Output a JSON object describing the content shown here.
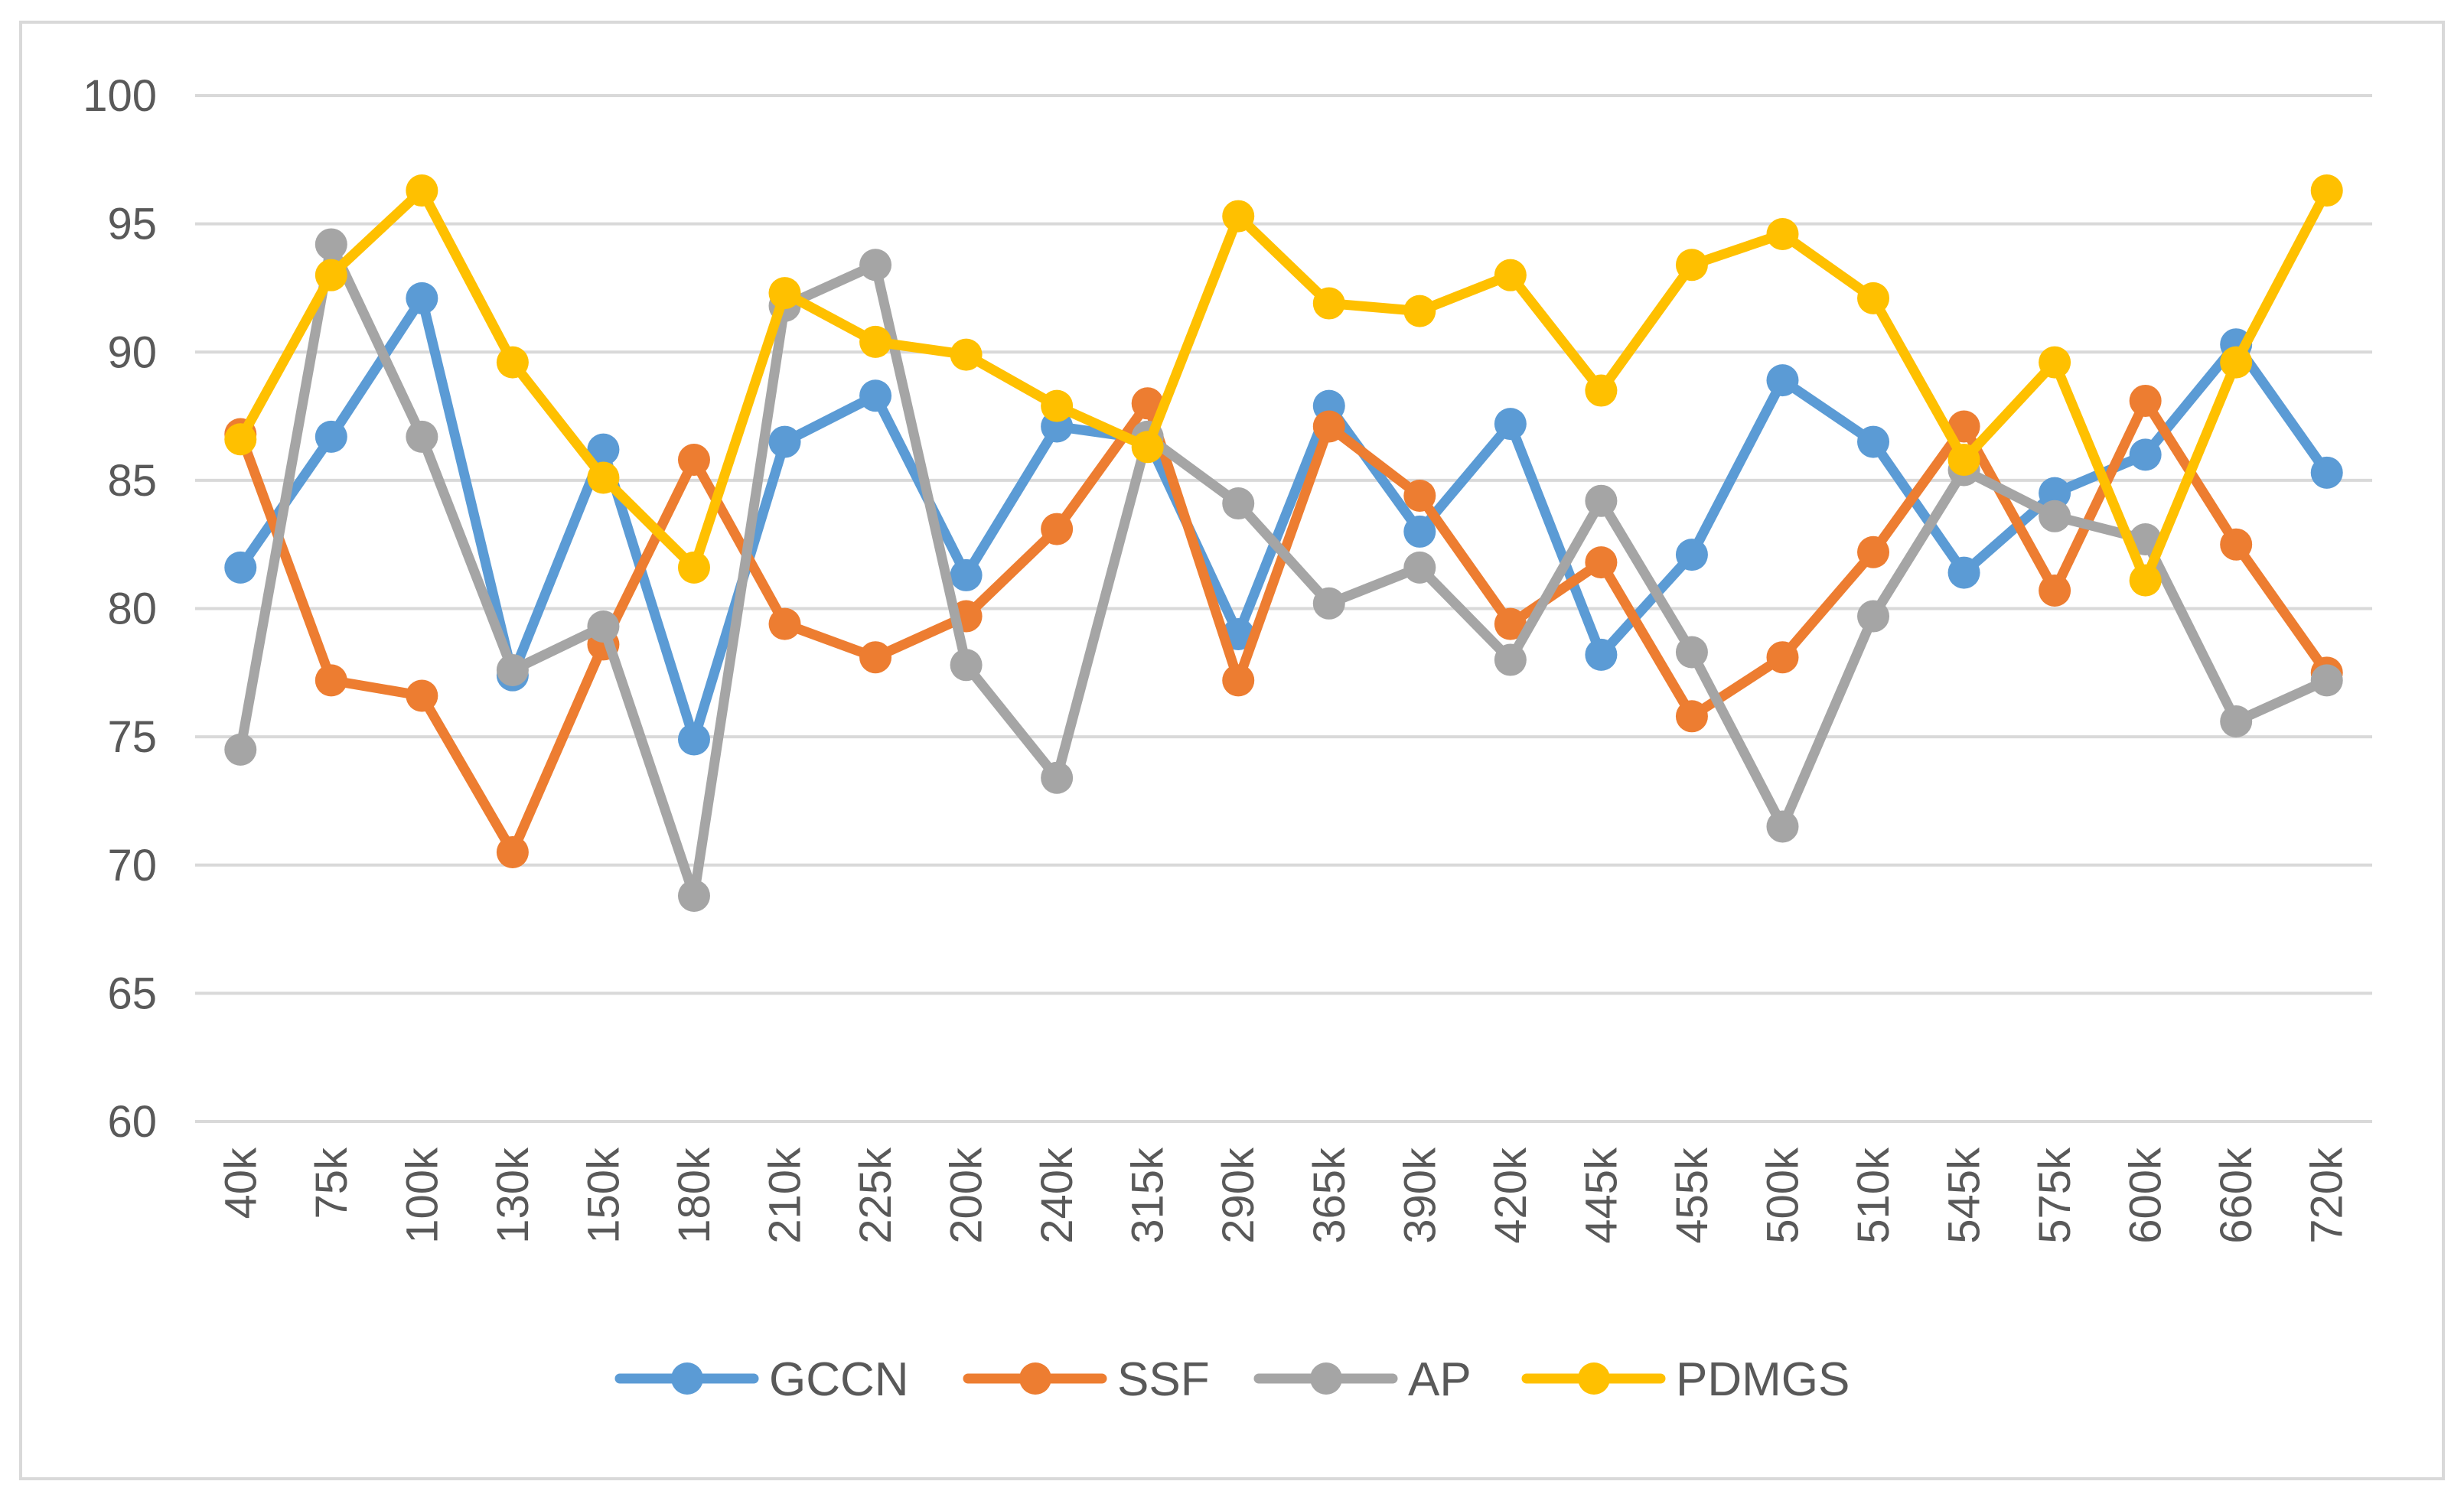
{
  "chart_data": {
    "type": "line",
    "title": "",
    "xlabel": "",
    "ylabel": "",
    "ylim": [
      60,
      100
    ],
    "yticks": [
      60,
      65,
      70,
      75,
      80,
      85,
      90,
      95,
      100
    ],
    "grid": true,
    "legend_position": "bottom",
    "categories": [
      "40k",
      "75k",
      "100k",
      "130k",
      "150k",
      "180k",
      "210k",
      "225k",
      "200k",
      "240k",
      "315k",
      "290k",
      "365k",
      "390k",
      "420k",
      "445k",
      "455k",
      "500k",
      "510k",
      "545k",
      "575k",
      "600k",
      "660k",
      "720k"
    ],
    "series": [
      {
        "name": "GCCN",
        "color": "#5b9bd5",
        "values": [
          81.6,
          86.7,
          92.1,
          77.4,
          86.2,
          74.9,
          86.5,
          88.3,
          81.3,
          87.1,
          86.6,
          79.0,
          87.9,
          83.0,
          87.2,
          78.2,
          82.1,
          88.9,
          86.5,
          81.4,
          84.5,
          86.0,
          90.3,
          85.3
        ]
      },
      {
        "name": "SSF",
        "color": "#ed7d31",
        "values": [
          86.8,
          77.2,
          76.6,
          70.5,
          78.6,
          85.8,
          79.4,
          78.1,
          79.7,
          83.1,
          88.0,
          77.2,
          87.1,
          84.4,
          79.4,
          81.8,
          75.8,
          78.1,
          82.2,
          87.1,
          80.7,
          88.1,
          82.5,
          77.5
        ]
      },
      {
        "name": "AP",
        "color": "#a5a5a5",
        "values": [
          74.5,
          94.2,
          86.7,
          77.6,
          79.3,
          68.8,
          91.8,
          93.4,
          77.8,
          73.4,
          86.7,
          84.1,
          80.2,
          81.6,
          78.0,
          84.2,
          78.3,
          71.5,
          79.7,
          85.4,
          83.6,
          82.7,
          75.6,
          77.2
        ]
      },
      {
        "name": "PDMGS",
        "color": "#ffc000",
        "values": [
          86.6,
          93.0,
          96.3,
          89.6,
          85.1,
          81.6,
          92.3,
          90.4,
          89.9,
          87.9,
          86.3,
          95.3,
          91.9,
          91.6,
          93.0,
          88.5,
          93.4,
          94.6,
          92.1,
          85.8,
          89.6,
          81.1,
          89.6,
          96.3
        ]
      }
    ]
  }
}
